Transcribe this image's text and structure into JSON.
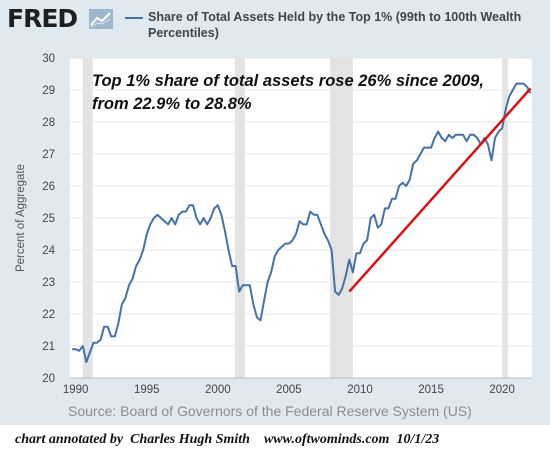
{
  "header": {
    "logo": "FRED",
    "logo_icon": "line-chart-icon",
    "legend_label": "Share of Total Assets Held by the Top 1% (99th to 100th Wealth Percentiles)"
  },
  "chart_data": {
    "type": "line",
    "title": "",
    "ylabel": "Percent of Aggregate",
    "xlabel": "",
    "xlim": [
      1989.6,
      2022.1
    ],
    "ylim": [
      20,
      30
    ],
    "yticks": [
      20,
      21,
      22,
      23,
      24,
      25,
      26,
      27,
      28,
      29,
      30
    ],
    "xticks": [
      1990,
      1995,
      2000,
      2005,
      2010,
      2015,
      2020
    ],
    "grid": true,
    "recessions": [
      [
        1990.5,
        1991.2
      ],
      [
        2001.2,
        2001.9
      ],
      [
        2007.9,
        2009.5
      ],
      [
        2020.0,
        2020.4
      ]
    ],
    "series": [
      {
        "color": "#4572a7",
        "x": [
          1989.75,
          1990.0,
          1990.25,
          1990.5,
          1990.75,
          1991.0,
          1991.25,
          1991.5,
          1991.75,
          1992.0,
          1992.25,
          1992.5,
          1992.75,
          1993.0,
          1993.25,
          1993.5,
          1993.75,
          1994.0,
          1994.25,
          1994.5,
          1994.75,
          1995.0,
          1995.25,
          1995.5,
          1995.75,
          1996.0,
          1996.25,
          1996.5,
          1996.75,
          1997.0,
          1997.25,
          1997.5,
          1997.75,
          1998.0,
          1998.25,
          1998.5,
          1998.75,
          1999.0,
          1999.25,
          1999.5,
          1999.75,
          2000.0,
          2000.25,
          2000.5,
          2000.75,
          2001.0,
          2001.25,
          2001.5,
          2001.75,
          2002.0,
          2002.25,
          2002.5,
          2002.75,
          2003.0,
          2003.25,
          2003.5,
          2003.75,
          2004.0,
          2004.25,
          2004.5,
          2004.75,
          2005.0,
          2005.25,
          2005.5,
          2005.75,
          2006.0,
          2006.25,
          2006.5,
          2006.75,
          2007.0,
          2007.25,
          2007.5,
          2007.75,
          2008.0,
          2008.25,
          2008.5,
          2008.75,
          2009.0,
          2009.25,
          2009.5,
          2009.75,
          2010.0,
          2010.25,
          2010.5,
          2010.75,
          2011.0,
          2011.25,
          2011.5,
          2011.75,
          2012.0,
          2012.25,
          2012.5,
          2012.75,
          2013.0,
          2013.25,
          2013.5,
          2013.75,
          2014.0,
          2014.25,
          2014.5,
          2014.75,
          2015.0,
          2015.25,
          2015.5,
          2015.75,
          2016.0,
          2016.25,
          2016.5,
          2016.75,
          2017.0,
          2017.25,
          2017.5,
          2017.75,
          2018.0,
          2018.25,
          2018.5,
          2018.75,
          2019.0,
          2019.25,
          2019.5,
          2019.75,
          2020.0,
          2020.25,
          2020.5,
          2020.75,
          2021.0,
          2021.25,
          2021.5,
          2021.75,
          2022.0
        ],
        "y": [
          20.9,
          20.9,
          20.85,
          21.0,
          20.5,
          20.8,
          21.1,
          21.1,
          21.2,
          21.6,
          21.6,
          21.3,
          21.3,
          21.7,
          22.3,
          22.5,
          22.9,
          23.1,
          23.5,
          23.7,
          24.0,
          24.5,
          24.8,
          25.0,
          25.1,
          25.0,
          24.9,
          24.8,
          25.0,
          24.8,
          25.1,
          25.2,
          25.2,
          25.4,
          25.4,
          25.0,
          24.8,
          25.0,
          24.8,
          25.0,
          25.3,
          25.4,
          25.1,
          24.6,
          24.0,
          23.5,
          23.5,
          22.7,
          22.9,
          22.9,
          22.9,
          22.3,
          21.9,
          21.8,
          22.4,
          23.0,
          23.3,
          23.8,
          24.0,
          24.1,
          24.2,
          24.2,
          24.3,
          24.5,
          24.9,
          24.8,
          24.8,
          25.2,
          25.1,
          25.1,
          24.8,
          24.5,
          24.3,
          24.0,
          22.7,
          22.6,
          22.8,
          23.2,
          23.7,
          23.3,
          23.9,
          23.9,
          24.2,
          24.3,
          25.0,
          25.1,
          24.7,
          24.8,
          25.3,
          25.3,
          25.6,
          25.6,
          26.0,
          26.1,
          26.0,
          26.2,
          26.7,
          26.8,
          27.0,
          27.2,
          27.2,
          27.2,
          27.5,
          27.7,
          27.5,
          27.4,
          27.6,
          27.5,
          27.6,
          27.6,
          27.6,
          27.4,
          27.6,
          27.6,
          27.5,
          27.3,
          27.5,
          27.3,
          26.8,
          27.5,
          27.7,
          27.8,
          28.4,
          28.8,
          29.0,
          29.2,
          29.2,
          29.2,
          29.1,
          28.9
        ]
      }
    ],
    "trendline": {
      "color": "#dd1111",
      "x": [
        2009.25,
        2022.0
      ],
      "y": [
        22.7,
        29.05
      ]
    }
  },
  "annotation": {
    "line1": "Top 1% share of total assets rose 26% since 2009,",
    "line2": "from 22.9% to 28.8%"
  },
  "footer": {
    "source": "Source: Board of Governors of the Federal Reserve System (US)",
    "credit": "chart annotated by  Charles Hugh Smith    www.oftwominds.com  10/1/23"
  }
}
